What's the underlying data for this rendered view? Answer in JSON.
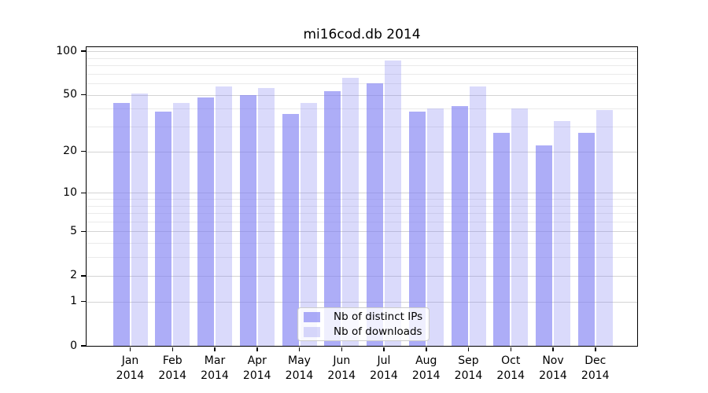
{
  "chart_data": {
    "type": "bar",
    "title": "mi16cod.db 2014",
    "categories": [
      "Jan",
      "Feb",
      "Mar",
      "Apr",
      "May",
      "Jun",
      "Jul",
      "Aug",
      "Sep",
      "Oct",
      "Nov",
      "Dec"
    ],
    "year_label": "2014",
    "series": [
      {
        "name": "Nb of distinct IPs",
        "color": "rgba(122,122,242,0.62)",
        "values": [
          44,
          38,
          48,
          50,
          37,
          53,
          60,
          38,
          42,
          27,
          22,
          27
        ]
      },
      {
        "name": "Nb of downloads",
        "color": "rgba(122,122,242,0.28)",
        "values": [
          51,
          44,
          57,
          56,
          44,
          66,
          86,
          40,
          57,
          40,
          33,
          39
        ]
      }
    ],
    "xlabel": "",
    "ylabel": "",
    "y_axis": {
      "scale": "log10(1+v)",
      "ticks": [
        0,
        1,
        2,
        5,
        10,
        20,
        50,
        100
      ],
      "minor_gridlines": [
        3,
        4,
        6,
        7,
        8,
        9,
        30,
        40,
        60,
        70,
        80,
        90
      ],
      "ylim": [
        0,
        107
      ]
    },
    "grid": "on",
    "legend_position": "lower center"
  },
  "colors": {
    "bar_distinct_ips": "rgba(122,122,242,0.62)",
    "bar_downloads": "rgba(122,122,242,0.28)",
    "grid_major": "#d4d4d4",
    "grid_minor": "#eaeaea",
    "axis": "#000000",
    "text": "#000000",
    "legend_border": "#cccccc"
  }
}
